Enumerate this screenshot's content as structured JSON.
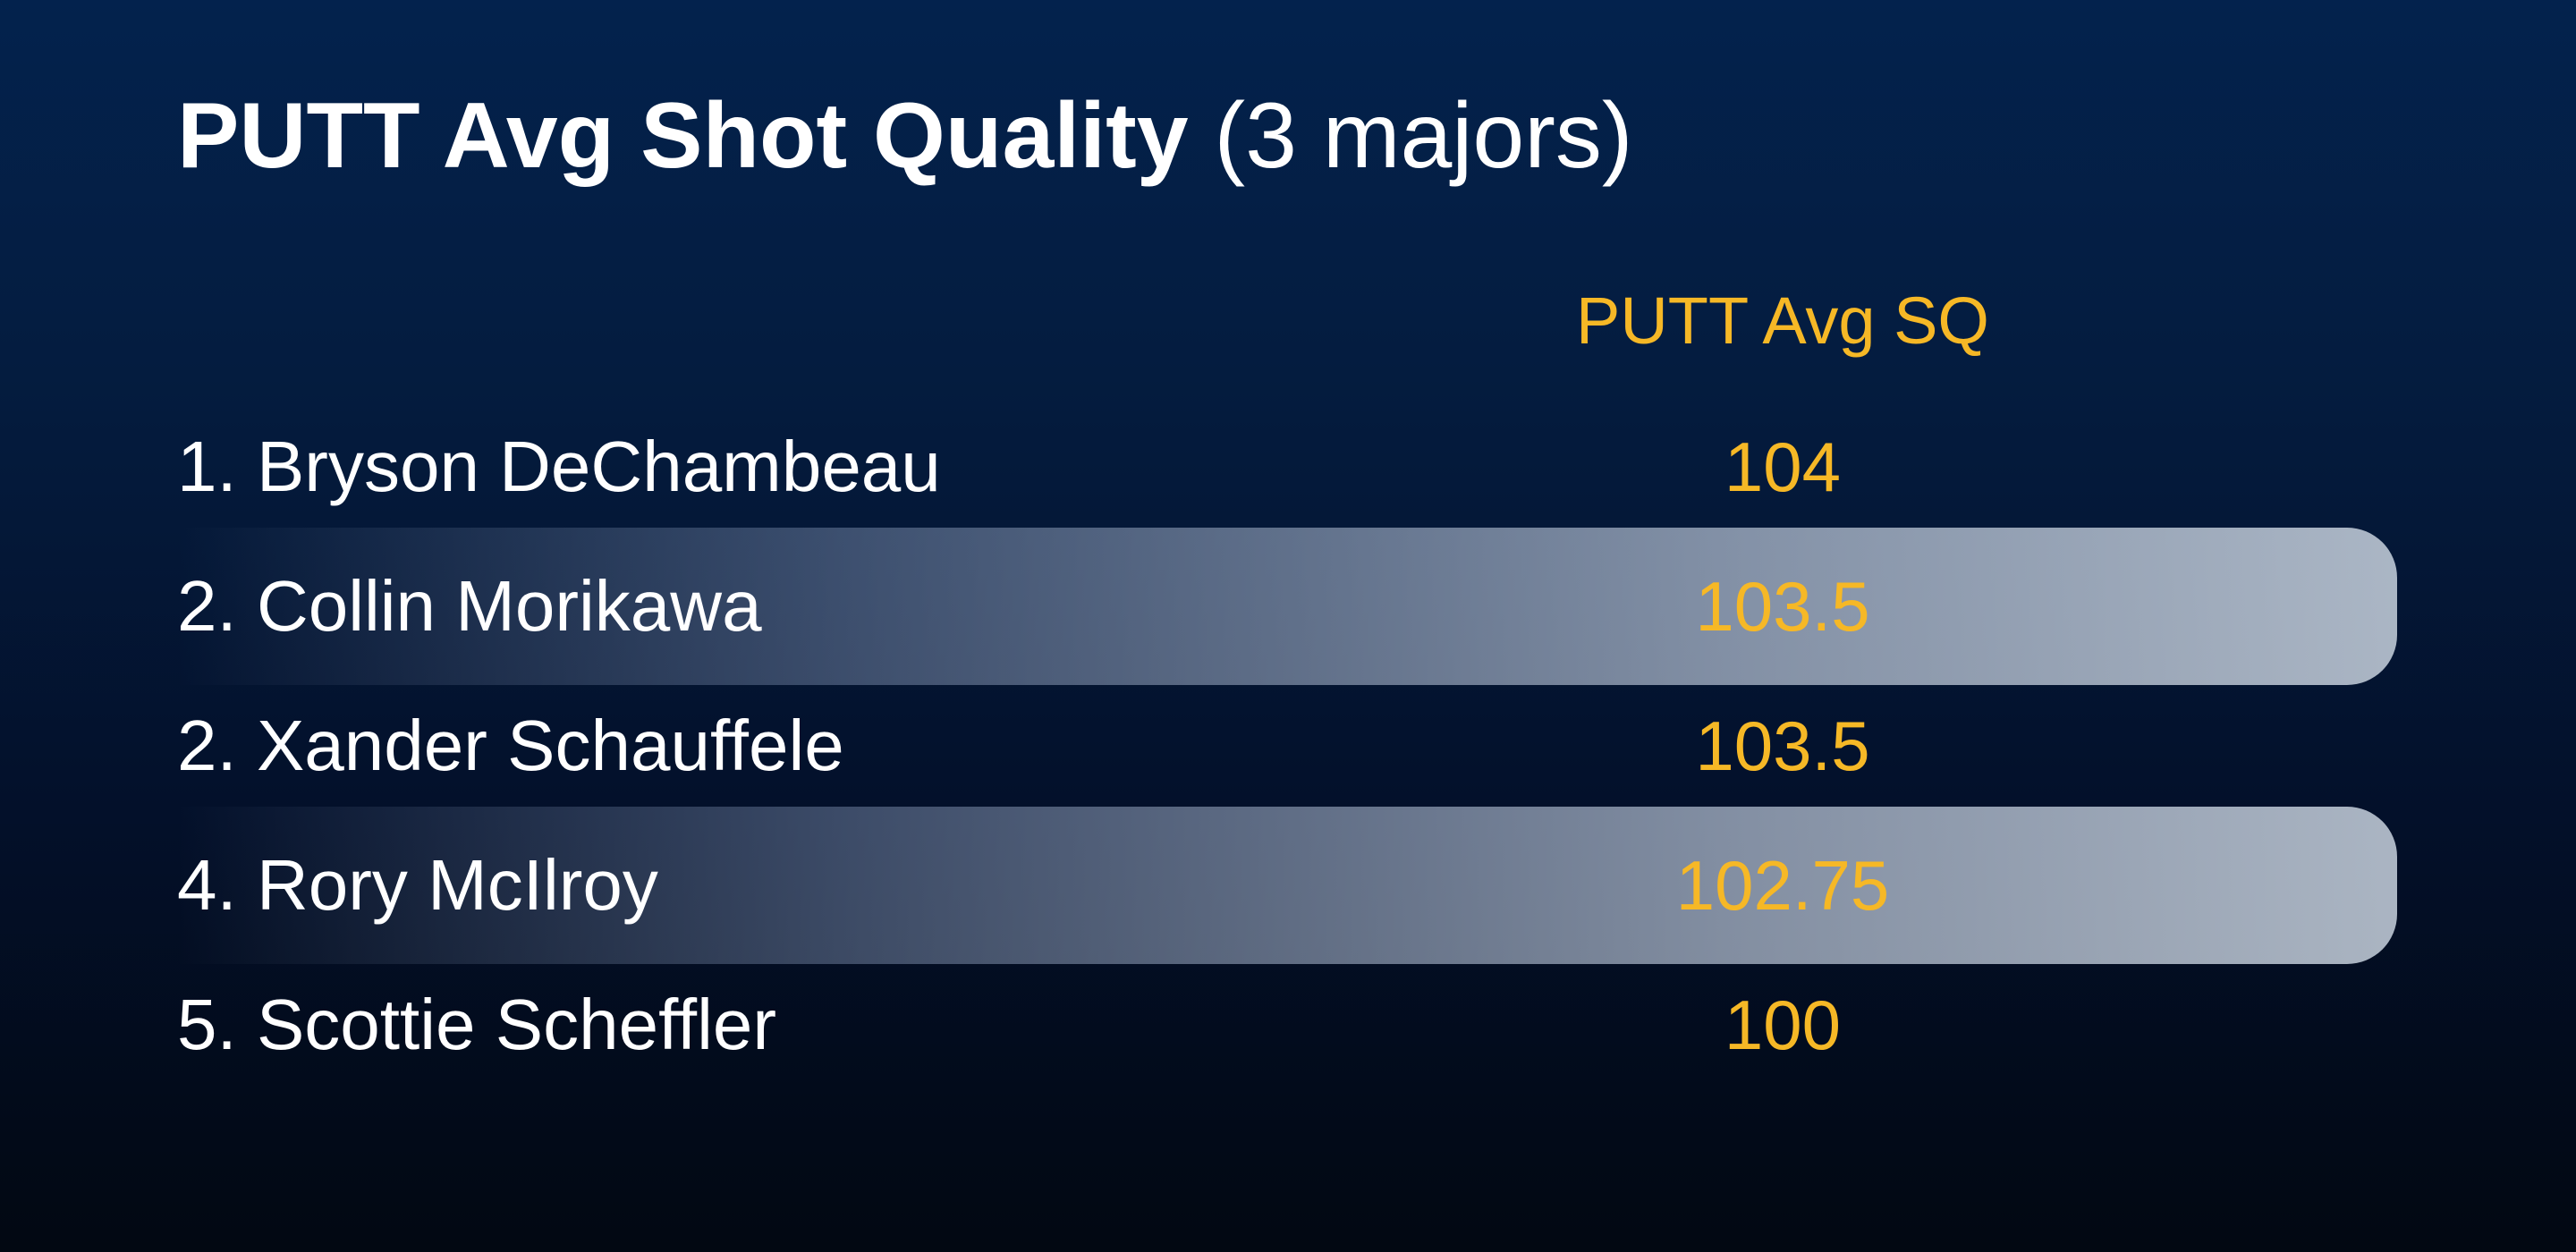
{
  "title": {
    "main": "PUTT Avg Shot Quality",
    "note": "(3 majors)"
  },
  "table": {
    "header": "PUTT Avg SQ",
    "rows": [
      [
        "1. Bryson DeChambeau",
        104
      ],
      [
        "2. Collin Morikawa",
        103.5
      ],
      [
        "2. Xander Schauffele",
        103.5
      ],
      [
        "4. Rory McIlroy",
        102.75
      ],
      [
        "5. Scottie Scheffler",
        100
      ]
    ]
  }
}
